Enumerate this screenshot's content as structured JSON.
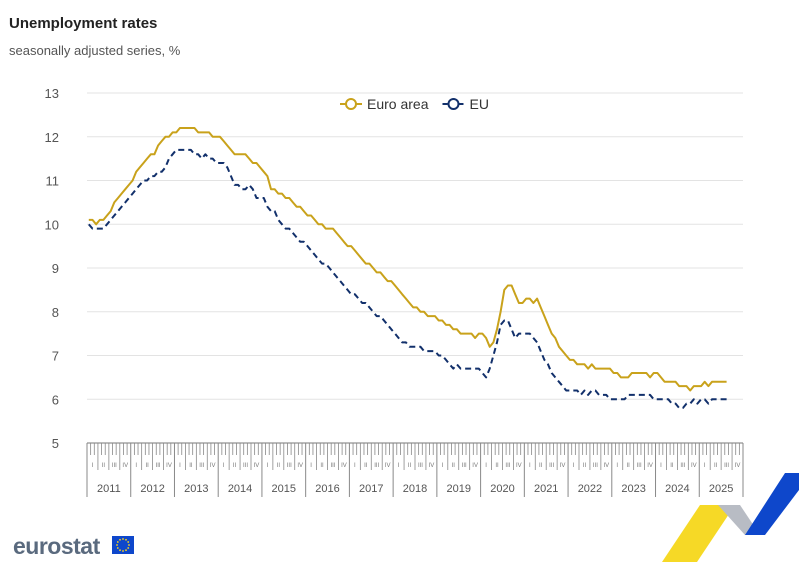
{
  "chart_data": {
    "type": "line",
    "title": "Unemployment rates",
    "subtitle": "seasonally adjusted series, %",
    "ylim": [
      5,
      13
    ],
    "yticks": [
      5,
      6,
      7,
      8,
      9,
      10,
      11,
      12,
      13
    ],
    "grid": true,
    "legend_placement": "top-center",
    "x_start": "2011-01",
    "x_frequency": "monthly",
    "years": [
      "2011",
      "2012",
      "2013",
      "2014",
      "2015",
      "2016",
      "2017",
      "2018",
      "2019",
      "2020",
      "2021",
      "2022",
      "2023",
      "2024",
      "2025"
    ],
    "quarters": [
      "I",
      "II",
      "III",
      "IV"
    ],
    "series": [
      {
        "name": "Euro area",
        "color": "#c9a21b",
        "style": "solid",
        "marker": "circle",
        "values": [
          10.1,
          10.1,
          10.0,
          10.1,
          10.1,
          10.2,
          10.3,
          10.5,
          10.6,
          10.7,
          10.8,
          10.9,
          11.0,
          11.2,
          11.3,
          11.4,
          11.5,
          11.6,
          11.6,
          11.8,
          11.9,
          12.0,
          12.0,
          12.1,
          12.1,
          12.2,
          12.2,
          12.2,
          12.2,
          12.2,
          12.1,
          12.1,
          12.1,
          12.1,
          12.0,
          12.0,
          12.0,
          11.9,
          11.8,
          11.7,
          11.6,
          11.6,
          11.6,
          11.6,
          11.5,
          11.4,
          11.4,
          11.3,
          11.2,
          11.1,
          10.8,
          10.8,
          10.7,
          10.7,
          10.6,
          10.6,
          10.5,
          10.4,
          10.4,
          10.3,
          10.2,
          10.2,
          10.1,
          10.0,
          10.0,
          9.9,
          9.9,
          9.9,
          9.8,
          9.7,
          9.6,
          9.5,
          9.5,
          9.4,
          9.3,
          9.2,
          9.1,
          9.1,
          9.0,
          8.9,
          8.9,
          8.8,
          8.7,
          8.7,
          8.6,
          8.5,
          8.4,
          8.3,
          8.2,
          8.1,
          8.1,
          8.0,
          8.0,
          7.9,
          7.9,
          7.9,
          7.8,
          7.8,
          7.7,
          7.7,
          7.6,
          7.6,
          7.5,
          7.5,
          7.5,
          7.5,
          7.4,
          7.5,
          7.5,
          7.4,
          7.2,
          7.3,
          7.6,
          8.0,
          8.5,
          8.6,
          8.6,
          8.4,
          8.2,
          8.2,
          8.3,
          8.3,
          8.2,
          8.3,
          8.1,
          7.9,
          7.7,
          7.5,
          7.4,
          7.2,
          7.1,
          7.0,
          6.9,
          6.9,
          6.8,
          6.8,
          6.8,
          6.7,
          6.8,
          6.7,
          6.7,
          6.7,
          6.7,
          6.7,
          6.6,
          6.6,
          6.5,
          6.5,
          6.5,
          6.6,
          6.6,
          6.6,
          6.6,
          6.6,
          6.5,
          6.6,
          6.6,
          6.5,
          6.4,
          6.4,
          6.4,
          6.4,
          6.3,
          6.3,
          6.3,
          6.2,
          6.3,
          6.3,
          6.3,
          6.4,
          6.3,
          6.4,
          6.4,
          6.4,
          6.4,
          6.4
        ]
      },
      {
        "name": "EU",
        "color": "#12306b",
        "style": "dashed",
        "marker": "circle",
        "values": [
          10.0,
          9.9,
          9.9,
          9.9,
          9.9,
          10.0,
          10.1,
          10.2,
          10.3,
          10.4,
          10.5,
          10.6,
          10.7,
          10.8,
          10.9,
          11.0,
          11.0,
          11.1,
          11.1,
          11.2,
          11.2,
          11.3,
          11.5,
          11.6,
          11.7,
          11.7,
          11.7,
          11.7,
          11.7,
          11.6,
          11.6,
          11.5,
          11.6,
          11.5,
          11.5,
          11.4,
          11.4,
          11.4,
          11.3,
          11.1,
          10.9,
          10.9,
          10.8,
          10.8,
          10.9,
          10.8,
          10.6,
          10.6,
          10.6,
          10.4,
          10.3,
          10.3,
          10.1,
          10.0,
          9.9,
          9.9,
          9.8,
          9.7,
          9.6,
          9.6,
          9.5,
          9.4,
          9.3,
          9.2,
          9.1,
          9.1,
          9.0,
          8.9,
          8.8,
          8.7,
          8.6,
          8.5,
          8.4,
          8.4,
          8.3,
          8.2,
          8.2,
          8.1,
          8.0,
          7.9,
          7.9,
          7.8,
          7.7,
          7.6,
          7.5,
          7.4,
          7.3,
          7.3,
          7.2,
          7.2,
          7.2,
          7.2,
          7.1,
          7.1,
          7.1,
          7.1,
          7.0,
          7.0,
          6.9,
          6.8,
          6.7,
          6.8,
          6.7,
          6.7,
          6.7,
          6.7,
          6.7,
          6.7,
          6.6,
          6.5,
          6.7,
          7.0,
          7.3,
          7.7,
          7.8,
          7.8,
          7.6,
          7.4,
          7.5,
          7.5,
          7.5,
          7.5,
          7.4,
          7.3,
          7.1,
          6.9,
          6.8,
          6.6,
          6.5,
          6.4,
          6.3,
          6.2,
          6.2,
          6.2,
          6.2,
          6.1,
          6.2,
          6.1,
          6.2,
          6.2,
          6.1,
          6.1,
          6.1,
          6.0,
          6.0,
          6.0,
          6.0,
          6.0,
          6.1,
          6.1,
          6.1,
          6.1,
          6.1,
          6.1,
          6.1,
          6.0,
          6.0,
          6.0,
          6.0,
          6.0,
          5.9,
          5.9,
          5.8,
          5.8,
          5.9,
          5.9,
          6.0,
          5.9,
          6.0,
          6.0,
          5.9,
          6.0,
          6.0,
          6.0,
          6.0,
          6.0
        ]
      }
    ]
  },
  "branding": {
    "logo_text": "eurostat",
    "flag_color": "#0e47cb"
  }
}
